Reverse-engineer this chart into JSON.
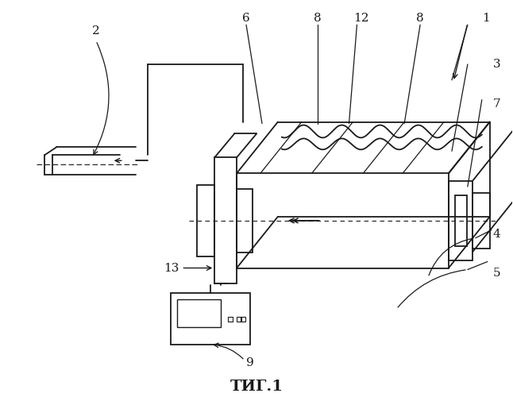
{
  "title": "ΤИГ.1",
  "background_color": "#ffffff",
  "line_color": "#1a1a1a",
  "fig_width": 6.46,
  "fig_height": 5.0
}
